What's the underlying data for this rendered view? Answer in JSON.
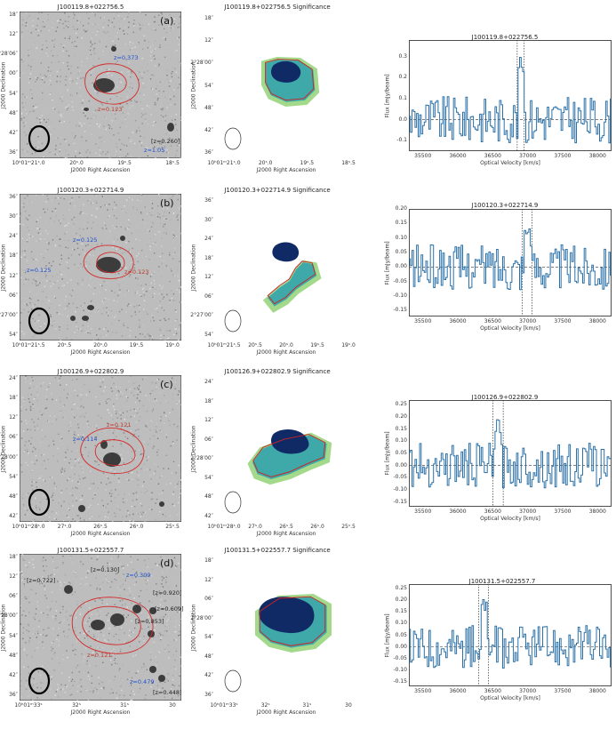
{
  "rows": [
    {
      "id": "a",
      "label": "(a)",
      "name": "J100119.8+022756.5",
      "sig_title": "J100119.8+022756.5  Significance",
      "spec_title": "J100119.8+022756.5",
      "ra_ticks": [
        "10ʰ01ᵐ21ˢ.0",
        "20ˢ.0",
        "19ˢ.5",
        "18ˢ.5"
      ],
      "dec_ticks": [
        "18″",
        "12″",
        "2°28′06″",
        "00″",
        "54″",
        "48″",
        "42″",
        "36″"
      ],
      "sig_dec_ticks": [
        "18″",
        "12″",
        "2°28′00″",
        "54″",
        "48″",
        "42″",
        "36″"
      ],
      "redshifts": [
        {
          "text": "z=0.373",
          "color": "blue"
        },
        {
          "text": "z=0.123",
          "color": "red"
        },
        {
          "text": "[z=0.260]",
          "color": "black"
        },
        {
          "text": "z=1.05",
          "color": "blue"
        }
      ],
      "spec_yticks": [
        "0.3",
        "0.2",
        "0.1",
        "0.0",
        "-0.1"
      ]
    },
    {
      "id": "b",
      "label": "(b)",
      "name": "J100120.3+022714.9",
      "sig_title": "J100120.3+022714.9  Significance",
      "spec_title": "J100120.3+022714.9",
      "ra_ticks": [
        "10ʰ01ᵐ21ˢ.5",
        "20ˢ.5",
        "20ˢ.0",
        "19ˢ.5",
        "19ˢ.0"
      ],
      "dec_ticks": [
        "36″",
        "30″",
        "24″",
        "18″",
        "12″",
        "06″",
        "2°27′00″",
        "54″"
      ],
      "sig_dec_ticks": [
        "36″",
        "30″",
        "24″",
        "18″",
        "12″",
        "06″",
        "2°27′00″",
        "54″"
      ],
      "redshifts": [
        {
          "text": "z=0.125",
          "color": "blue"
        },
        {
          "text": "z=0.123",
          "color": "red"
        },
        {
          "text": "z=0.125",
          "color": "blue"
        }
      ],
      "spec_yticks": [
        "0.20",
        "0.15",
        "0.10",
        "0.05",
        "0.00",
        "-0.05",
        "-0.10",
        "-0.15"
      ]
    },
    {
      "id": "c",
      "label": "(c)",
      "name": "J100126.9+022802.9",
      "sig_title": "J100126.9+022802.9  Significance",
      "spec_title": "J100126.9+022802.9",
      "ra_ticks": [
        "10ʰ01ᵐ28ˢ.0",
        "27ˢ.0",
        "26ˢ.5",
        "26ˢ.0",
        "25ˢ.5"
      ],
      "dec_ticks": [
        "24″",
        "18″",
        "12″",
        "06″",
        "2°28′00″",
        "54″",
        "48″",
        "42″"
      ],
      "sig_dec_ticks": [
        "24″",
        "18″",
        "12″",
        "06″",
        "2°28′00″",
        "54″",
        "48″",
        "42″"
      ],
      "redshifts": [
        {
          "text": "z=0.121",
          "color": "red"
        },
        {
          "text": "z=0.114",
          "color": "blue"
        }
      ],
      "spec_yticks": [
        "0.25",
        "0.20",
        "0.15",
        "0.10",
        "0.05",
        "0.00",
        "-0.05",
        "-0.10",
        "-0.15"
      ]
    },
    {
      "id": "d",
      "label": "(d)",
      "name": "J100131.5+022557.7",
      "sig_title": "J100131.5+022557.7  Significance",
      "spec_title": "J100131.5+022557.7",
      "ra_ticks": [
        "10ʰ01ᵐ33ˢ",
        "32ˢ",
        "31ˢ",
        "30"
      ],
      "dec_ticks": [
        "18″",
        "12″",
        "06″",
        "2°28′00″",
        "54″",
        "48″",
        "42″",
        "36″"
      ],
      "sig_dec_ticks": [
        "18″",
        "12″",
        "06″",
        "2°28′00″",
        "54″",
        "48″",
        "42″",
        "36″"
      ],
      "redshifts": [
        {
          "text": "[z=0.722]",
          "color": "black"
        },
        {
          "text": "[z=0.130]",
          "color": "black"
        },
        {
          "text": "z=0.309",
          "color": "blue"
        },
        {
          "text": "[z=0.920]",
          "color": "black"
        },
        {
          "text": "[z=0.609]",
          "color": "black"
        },
        {
          "text": "[z=0.853]",
          "color": "black"
        },
        {
          "text": "z=0.121",
          "color": "red"
        },
        {
          "text": "z=0.479",
          "color": "blue"
        },
        {
          "text": "[z=0.448]",
          "color": "black"
        }
      ],
      "spec_yticks": [
        "0.25",
        "0.20",
        "0.15",
        "0.10",
        "0.05",
        "0.00",
        "-0.05",
        "-0.10",
        "-0.15"
      ]
    }
  ],
  "axes": {
    "ra_label": "J2000 Right Ascension",
    "dec_label": "J2000 Declination",
    "flux_label": "Flux [mJy/beam]",
    "vel_label": "Optical Velocity [km/s]",
    "vel_ticks": [
      "35500",
      "36000",
      "36500",
      "37000",
      "37500",
      "38000"
    ]
  },
  "chart_data": [
    {
      "type": "line",
      "title": "J100119.8+022756.5",
      "xlabel": "Optical Velocity [km/s]",
      "ylabel": "Flux [mJy/beam]",
      "xlim": [
        35300,
        38200
      ],
      "ylim": [
        -0.15,
        0.38
      ],
      "markers": [
        36850,
        36950
      ],
      "peak": {
        "x": 36900,
        "y": 0.3
      }
    },
    {
      "type": "line",
      "title": "J100120.3+022714.9",
      "xlabel": "Optical Velocity [km/s]",
      "ylabel": "Flux [mJy/beam]",
      "xlim": [
        35300,
        38200
      ],
      "ylim": [
        -0.17,
        0.2
      ],
      "markers": [
        36920,
        37060
      ],
      "peak": {
        "x": 36990,
        "y": 0.16
      }
    },
    {
      "type": "line",
      "title": "J100126.9+022802.9",
      "xlabel": "Optical Velocity [km/s]",
      "ylabel": "Flux [mJy/beam]",
      "xlim": [
        35300,
        38200
      ],
      "ylim": [
        -0.17,
        0.27
      ],
      "markers": [
        36500,
        36650
      ],
      "peak": {
        "x": 36560,
        "y": 0.19
      }
    },
    {
      "type": "line",
      "title": "J100131.5+022557.7",
      "xlabel": "Optical Velocity [km/s]",
      "ylabel": "Flux [mJy/beam]",
      "xlim": [
        35300,
        38200
      ],
      "ylim": [
        -0.17,
        0.27
      ],
      "markers": [
        36300,
        36440
      ],
      "peak": {
        "x": 36370,
        "y": 0.21
      }
    }
  ]
}
